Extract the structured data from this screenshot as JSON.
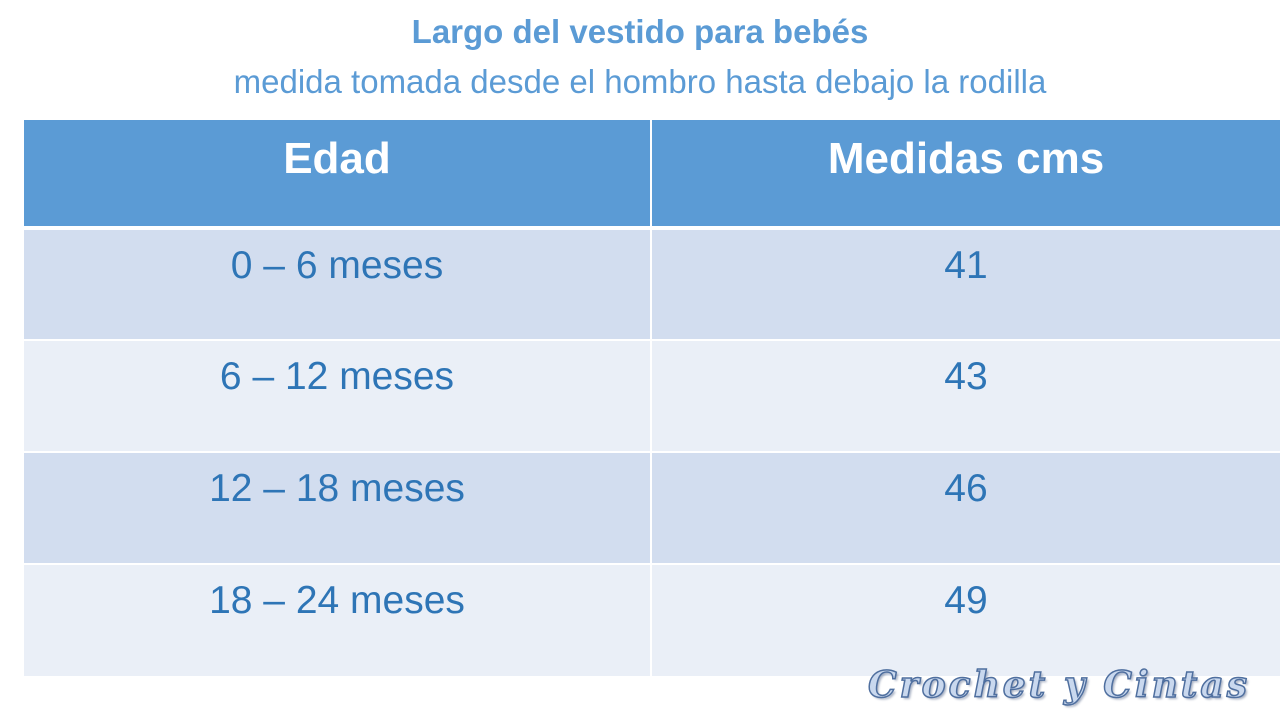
{
  "title": "Largo del vestido para bebés",
  "subtitle": "medida tomada desde el hombro hasta debajo la rodilla",
  "table": {
    "headers": [
      "Edad",
      "Medidas cms"
    ],
    "rows": [
      [
        "0 – 6 meses",
        "41"
      ],
      [
        "6 – 12 meses",
        "43"
      ],
      [
        "12 – 18 meses",
        "46"
      ],
      [
        "18 – 24 meses",
        "49"
      ]
    ]
  },
  "watermark": "Crochet y Cintas",
  "colors": {
    "accent": "#5b9bd5",
    "text": "#2e75b6",
    "row_dark": "#d2ddef",
    "row_light": "#eaeff7"
  }
}
